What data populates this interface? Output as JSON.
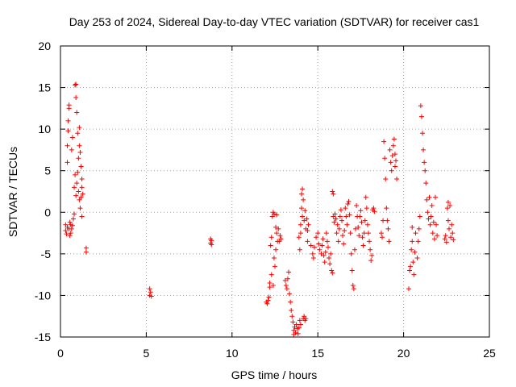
{
  "chart_data": {
    "type": "scatter",
    "title": "Day 253 of 2024, Sidereal Day-to-day VTEC variation (SDTVAR) for receiver cas1",
    "xlabel": "GPS time / hours",
    "ylabel": "SDTVAR / TECUs",
    "xlim": [
      0,
      25
    ],
    "ylim": [
      -15,
      20
    ],
    "xticks": [
      "0",
      "5",
      "10",
      "15",
      "20",
      "25"
    ],
    "yticks": [
      "-15",
      "-10",
      "-5",
      "0",
      "5",
      "10",
      "15",
      "20"
    ],
    "grid": true,
    "marker": "plus",
    "color": "#ff0000",
    "series": [
      {
        "name": "cas1",
        "points": [
          [
            0.3,
            -1.5
          ],
          [
            0.3,
            -2.2
          ],
          [
            0.35,
            -2.6
          ],
          [
            0.4,
            -1.8
          ],
          [
            0.4,
            6.0
          ],
          [
            0.4,
            8.0
          ],
          [
            0.45,
            9.8
          ],
          [
            0.45,
            11.0
          ],
          [
            0.5,
            12.5
          ],
          [
            0.5,
            12.9
          ],
          [
            0.5,
            -2.0
          ],
          [
            0.55,
            -2.8
          ],
          [
            0.55,
            -1.2
          ],
          [
            0.6,
            -2.5
          ],
          [
            0.6,
            -1.5
          ],
          [
            0.65,
            -2.0
          ],
          [
            0.65,
            7.5
          ],
          [
            0.7,
            -1.6
          ],
          [
            0.7,
            9.0
          ],
          [
            0.75,
            -0.8
          ],
          [
            0.8,
            -0.2
          ],
          [
            0.8,
            3.0
          ],
          [
            0.85,
            4.5
          ],
          [
            0.85,
            15.3
          ],
          [
            0.9,
            15.4
          ],
          [
            0.9,
            13.8
          ],
          [
            0.9,
            2.0
          ],
          [
            0.95,
            3.5
          ],
          [
            0.95,
            12.0
          ],
          [
            1.0,
            4.8
          ],
          [
            1.0,
            9.5
          ],
          [
            1.05,
            2.5
          ],
          [
            1.05,
            6.5
          ],
          [
            1.1,
            1.5
          ],
          [
            1.1,
            8.0
          ],
          [
            1.1,
            10.2
          ],
          [
            1.15,
            0.5
          ],
          [
            1.15,
            7.2
          ],
          [
            1.2,
            1.8
          ],
          [
            1.2,
            5.5
          ],
          [
            1.25,
            -0.5
          ],
          [
            1.25,
            4.0
          ],
          [
            1.25,
            3.0
          ],
          [
            1.3,
            2.2
          ],
          [
            1.5,
            -4.3
          ],
          [
            1.5,
            -4.8
          ],
          [
            5.2,
            -9.2
          ],
          [
            5.2,
            -10.0
          ],
          [
            5.25,
            -9.6
          ],
          [
            5.3,
            -10.1
          ],
          [
            8.75,
            -3.2
          ],
          [
            8.75,
            -3.7
          ],
          [
            8.8,
            -3.4
          ],
          [
            8.8,
            -3.9
          ],
          [
            12.0,
            -10.8
          ],
          [
            12.05,
            -11.0
          ],
          [
            12.1,
            -10.6
          ],
          [
            12.15,
            -10.2
          ],
          [
            12.2,
            -9.0
          ],
          [
            12.2,
            -8.5
          ],
          [
            12.25,
            -4.0
          ],
          [
            12.3,
            -3.0
          ],
          [
            12.3,
            -7.5
          ],
          [
            12.35,
            -0.5
          ],
          [
            12.4,
            0.0
          ],
          [
            12.4,
            -8.8
          ],
          [
            12.45,
            -5.5
          ],
          [
            12.45,
            -0.2
          ],
          [
            12.5,
            -6.5
          ],
          [
            12.55,
            -4.5
          ],
          [
            12.55,
            -1.8
          ],
          [
            12.6,
            -2.5
          ],
          [
            12.6,
            -0.3
          ],
          [
            12.65,
            -3.5
          ],
          [
            12.7,
            -2.0
          ],
          [
            12.75,
            -3.5
          ],
          [
            12.8,
            -2.8
          ],
          [
            12.85,
            -3.2
          ],
          [
            13.1,
            -8.2
          ],
          [
            13.15,
            -8.8
          ],
          [
            13.2,
            -9.2
          ],
          [
            13.25,
            -8.0
          ],
          [
            13.3,
            -7.2
          ],
          [
            13.35,
            -9.8
          ],
          [
            13.4,
            -10.8
          ],
          [
            13.45,
            -11.8
          ],
          [
            13.5,
            -12.5
          ],
          [
            13.55,
            -13.2
          ],
          [
            13.6,
            -14.2
          ],
          [
            13.6,
            -14.7
          ],
          [
            13.65,
            -13.8
          ],
          [
            13.7,
            -14.5
          ],
          [
            13.75,
            -13.5
          ],
          [
            13.8,
            -14.0
          ],
          [
            13.85,
            -14.6
          ],
          [
            13.9,
            -13.9
          ],
          [
            13.95,
            -13.0
          ],
          [
            14.0,
            -13.5
          ],
          [
            13.9,
            -3.0
          ],
          [
            13.95,
            -4.5
          ],
          [
            14.0,
            -1.5
          ],
          [
            14.0,
            -2.5
          ],
          [
            14.05,
            0.5
          ],
          [
            14.05,
            2.2
          ],
          [
            14.1,
            2.8
          ],
          [
            14.1,
            -0.5
          ],
          [
            14.15,
            1.5
          ],
          [
            14.15,
            -12.8
          ],
          [
            14.2,
            -12.5
          ],
          [
            14.2,
            -1.0
          ],
          [
            14.25,
            -13.0
          ],
          [
            14.25,
            0.2
          ],
          [
            14.3,
            -12.8
          ],
          [
            14.3,
            -2.0
          ],
          [
            14.35,
            -0.8
          ],
          [
            14.4,
            -3.5
          ],
          [
            14.4,
            -2.2
          ],
          [
            14.45,
            -1.5
          ],
          [
            14.6,
            -4.0
          ],
          [
            14.7,
            -5.0
          ],
          [
            14.75,
            -5.5
          ],
          [
            14.8,
            -4.2
          ],
          [
            14.9,
            -3.0
          ],
          [
            15.0,
            -2.5
          ],
          [
            15.05,
            -3.8
          ],
          [
            15.1,
            -4.5
          ],
          [
            15.2,
            -5.0
          ],
          [
            15.25,
            -4.0
          ],
          [
            15.3,
            -3.2
          ],
          [
            15.35,
            -5.2
          ],
          [
            15.4,
            -6.0
          ],
          [
            15.45,
            -4.8
          ],
          [
            15.5,
            -2.5
          ],
          [
            15.55,
            -3.5
          ],
          [
            15.6,
            -4.2
          ],
          [
            15.65,
            -5.5
          ],
          [
            15.7,
            -6.2
          ],
          [
            15.75,
            -5.0
          ],
          [
            15.8,
            -7.0
          ],
          [
            15.85,
            -7.3
          ],
          [
            15.85,
            2.5
          ],
          [
            15.9,
            2.2
          ],
          [
            15.9,
            -0.5
          ],
          [
            15.95,
            -1.2
          ],
          [
            16.0,
            -0.2
          ],
          [
            16.05,
            -0.8
          ],
          [
            16.1,
            -2.5
          ],
          [
            16.15,
            -1.5
          ],
          [
            16.2,
            -3.5
          ],
          [
            16.25,
            -2.0
          ],
          [
            16.3,
            -0.5
          ],
          [
            16.35,
            0.3
          ],
          [
            16.4,
            -1.0
          ],
          [
            16.45,
            -2.8
          ],
          [
            16.5,
            -3.8
          ],
          [
            16.55,
            -2.2
          ],
          [
            16.6,
            0.5
          ],
          [
            16.65,
            -0.5
          ],
          [
            16.7,
            -1.5
          ],
          [
            16.75,
            1.0
          ],
          [
            16.8,
            1.3
          ],
          [
            16.85,
            -0.3
          ],
          [
            16.9,
            -2.5
          ],
          [
            16.95,
            -5.0
          ],
          [
            17.0,
            -7.0
          ],
          [
            17.05,
            -8.8
          ],
          [
            17.1,
            -9.2
          ],
          [
            17.15,
            -4.5
          ],
          [
            17.2,
            -2.0
          ],
          [
            17.25,
            0.8
          ],
          [
            17.3,
            -0.5
          ],
          [
            17.35,
            -1.8
          ],
          [
            17.4,
            -2.8
          ],
          [
            17.45,
            -0.5
          ],
          [
            17.5,
            0.2
          ],
          [
            17.55,
            -1.2
          ],
          [
            17.6,
            -3.0
          ],
          [
            17.65,
            -4.0
          ],
          [
            17.7,
            -2.5
          ],
          [
            17.75,
            -1.0
          ],
          [
            17.8,
            1.8
          ],
          [
            17.85,
            0.5
          ],
          [
            17.9,
            -1.5
          ],
          [
            17.95,
            -2.5
          ],
          [
            18.0,
            -3.5
          ],
          [
            18.05,
            -4.5
          ],
          [
            18.1,
            -5.8
          ],
          [
            18.15,
            -5.2
          ],
          [
            18.2,
            0.3
          ],
          [
            18.25,
            0.5
          ],
          [
            18.3,
            0.1
          ],
          [
            18.7,
            -2.5
          ],
          [
            18.75,
            -3.0
          ],
          [
            18.8,
            -1.0
          ],
          [
            18.85,
            8.5
          ],
          [
            18.9,
            6.5
          ],
          [
            18.95,
            4.0
          ],
          [
            19.0,
            0.5
          ],
          [
            19.05,
            -1.0
          ],
          [
            19.1,
            -2.0
          ],
          [
            19.15,
            -3.5
          ],
          [
            19.2,
            7.5
          ],
          [
            19.25,
            6.0
          ],
          [
            19.3,
            5.0
          ],
          [
            19.35,
            6.8
          ],
          [
            19.4,
            8.0
          ],
          [
            19.45,
            8.8
          ],
          [
            19.5,
            7.0
          ],
          [
            19.5,
            5.5
          ],
          [
            19.55,
            6.2
          ],
          [
            19.6,
            4.0
          ],
          [
            20.3,
            -9.2
          ],
          [
            20.35,
            -7.0
          ],
          [
            20.4,
            -6.5
          ],
          [
            20.45,
            -4.5
          ],
          [
            20.5,
            -3.5
          ],
          [
            20.5,
            -1.8
          ],
          [
            20.55,
            -6.0
          ],
          [
            20.6,
            -7.5
          ],
          [
            20.65,
            -4.8
          ],
          [
            20.7,
            -2.5
          ],
          [
            20.8,
            -5.5
          ],
          [
            20.85,
            -3.5
          ],
          [
            20.9,
            -2.0
          ],
          [
            20.95,
            -0.5
          ],
          [
            21.0,
            12.8
          ],
          [
            21.05,
            11.5
          ],
          [
            21.1,
            9.5
          ],
          [
            21.15,
            7.5
          ],
          [
            21.2,
            6.0
          ],
          [
            21.25,
            5.0
          ],
          [
            21.3,
            3.5
          ],
          [
            21.35,
            1.5
          ],
          [
            21.4,
            0.0
          ],
          [
            21.45,
            -0.8
          ],
          [
            21.5,
            1.8
          ],
          [
            21.55,
            -1.5
          ],
          [
            21.6,
            -0.5
          ],
          [
            21.65,
            0.8
          ],
          [
            21.7,
            -2.5
          ],
          [
            21.75,
            -1.2
          ],
          [
            21.8,
            -3.2
          ],
          [
            21.85,
            1.8
          ],
          [
            21.9,
            -1.5
          ],
          [
            21.95,
            -2.8
          ],
          [
            22.4,
            -3.2
          ],
          [
            22.45,
            -2.8
          ],
          [
            22.5,
            -3.6
          ],
          [
            22.55,
            0.5
          ],
          [
            22.6,
            1.2
          ],
          [
            22.6,
            -1.0
          ],
          [
            22.65,
            -2.0
          ],
          [
            22.7,
            0.8
          ],
          [
            22.75,
            -3.0
          ],
          [
            22.8,
            -1.5
          ],
          [
            22.85,
            -2.5
          ],
          [
            22.9,
            -3.3
          ]
        ]
      }
    ]
  }
}
